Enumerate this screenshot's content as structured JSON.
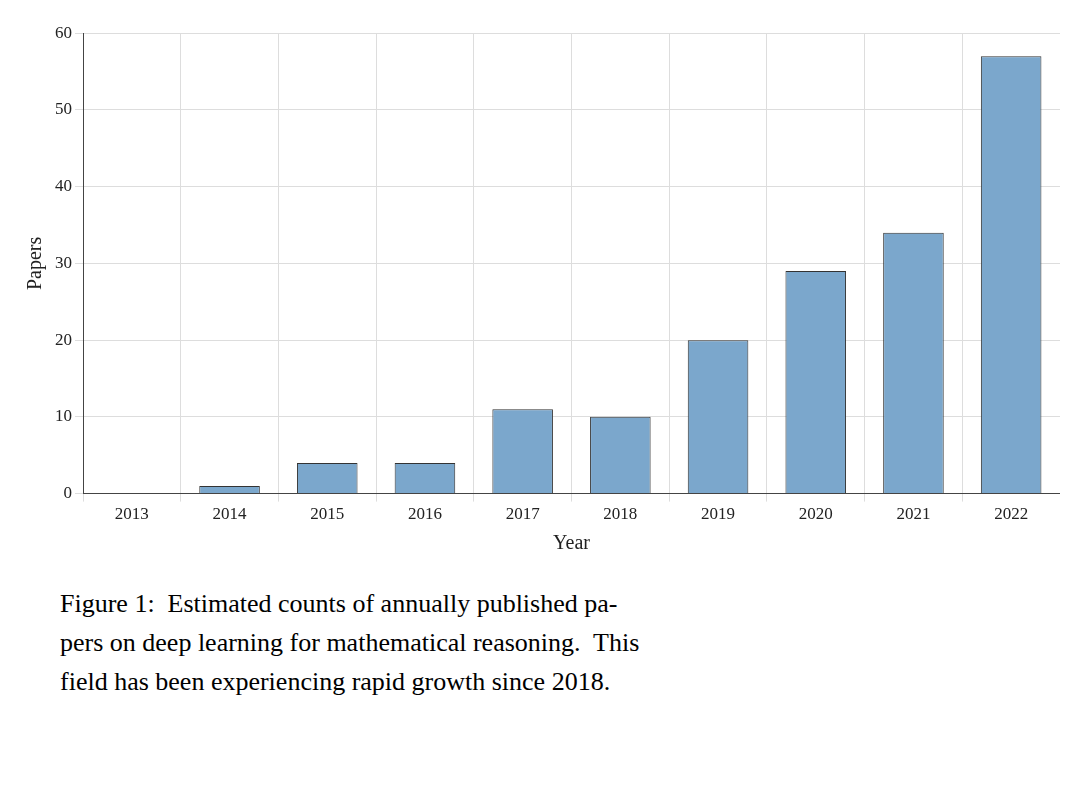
{
  "chart_data": {
    "type": "bar",
    "categories": [
      "2013",
      "2014",
      "2015",
      "2016",
      "2017",
      "2018",
      "2019",
      "2020",
      "2021",
      "2022"
    ],
    "values": [
      0,
      1,
      4,
      4,
      11,
      10,
      20,
      29,
      34,
      57
    ],
    "color": "#7ba7cc",
    "xlabel": "Year",
    "ylabel": "Papers",
    "ylim": [
      0,
      60
    ],
    "yticks": [
      0,
      10,
      20,
      30,
      40,
      50,
      60
    ],
    "grid": true,
    "caption": [
      "Figure 1:  Estimated counts of annually published pa-",
      "pers on deep learning for mathematical reasoning.  This",
      "field has been experiencing rapid growth since 2018."
    ]
  }
}
